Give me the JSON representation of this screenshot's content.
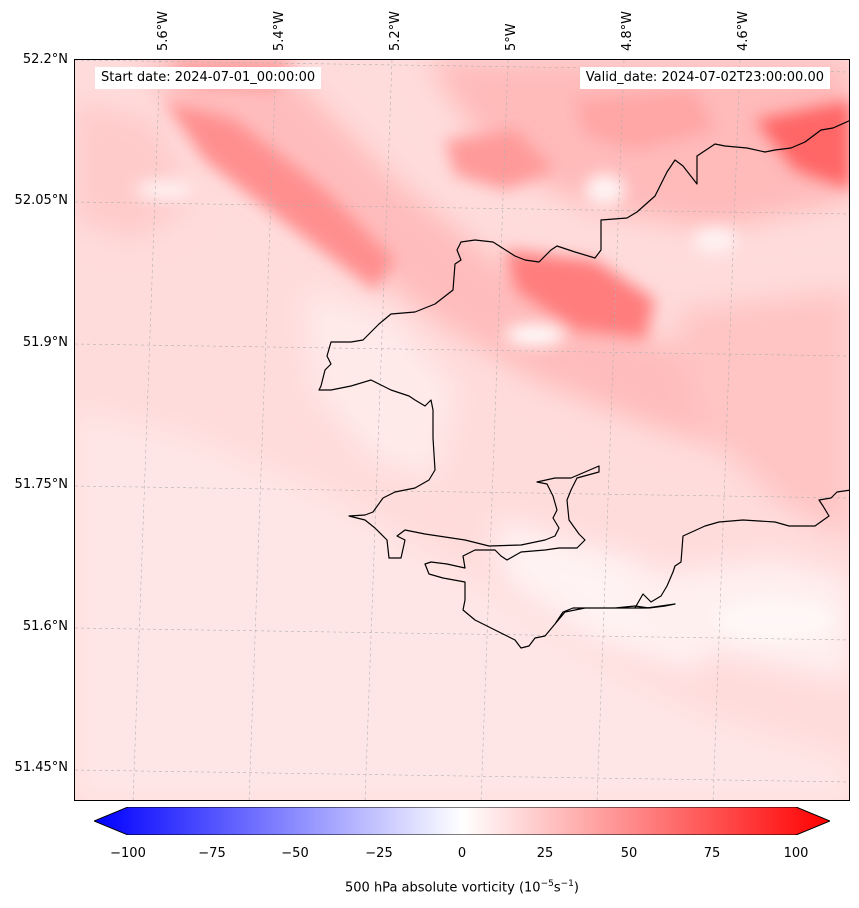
{
  "map": {
    "start_label": "Start date: 2024-07-01_00:00:00",
    "valid_label": "Valid_date: 2024-07-02T23:00:00.00",
    "lat_ticks": [
      "52.2°N",
      "52.05°N",
      "51.9°N",
      "51.75°N",
      "51.6°N",
      "51.45°N"
    ],
    "lon_ticks": [
      "5.6°W",
      "5.4°W",
      "5.2°W",
      "5°W",
      "4.8°W",
      "4.6°W"
    ],
    "coastline_color": "#000000",
    "gridline_color": "#b0b0b0"
  },
  "colorbar": {
    "min": -100,
    "max": 100,
    "tick_labels": [
      "−100",
      "−75",
      "−50",
      "−25",
      "0",
      "25",
      "50",
      "75",
      "100"
    ],
    "label_text": "500 hPa absolute vorticity (10",
    "label_sup1": "−5",
    "label_mid": "s",
    "label_sup2": "−1",
    "label_end": ")",
    "color_low": "#0000ff",
    "color_mid": "#ffffff",
    "color_high": "#ff0000"
  }
}
